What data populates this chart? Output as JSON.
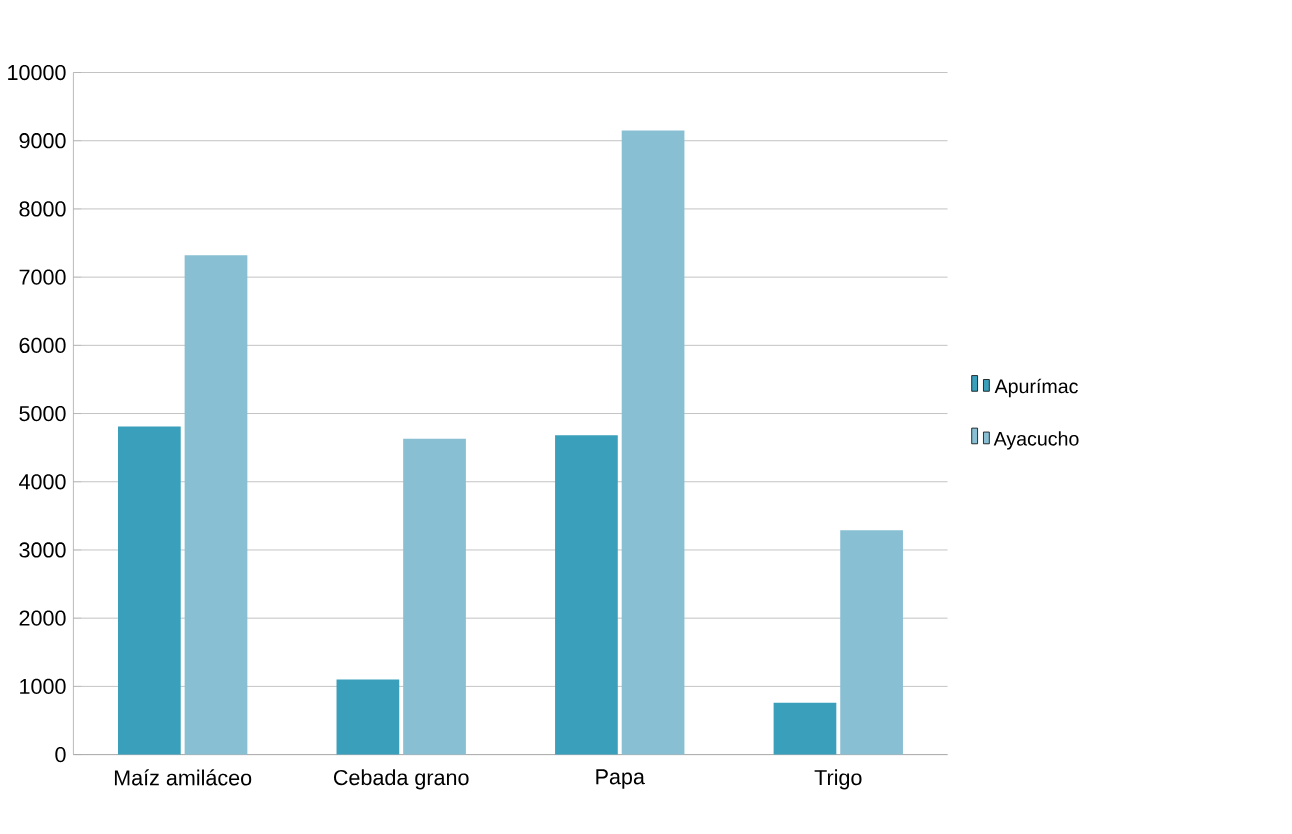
{
  "chart_data": {
    "type": "bar",
    "categories": [
      "Maíz amiláceo",
      "Cebada grano",
      "Papa",
      "Trigo"
    ],
    "series": [
      {
        "name": "Apurímac",
        "color": "#3a9fbb",
        "values": [
          4810,
          1100,
          4680,
          760
        ]
      },
      {
        "name": "Ayacucho",
        "color": "#88bfd3",
        "values": [
          7320,
          4630,
          9150,
          3290
        ]
      }
    ],
    "ylim": [
      0,
      10000
    ],
    "yticks": [
      0,
      1000,
      2000,
      3000,
      4000,
      5000,
      6000,
      7000,
      8000,
      9000,
      10000
    ],
    "grid": "y",
    "legend": "right"
  }
}
